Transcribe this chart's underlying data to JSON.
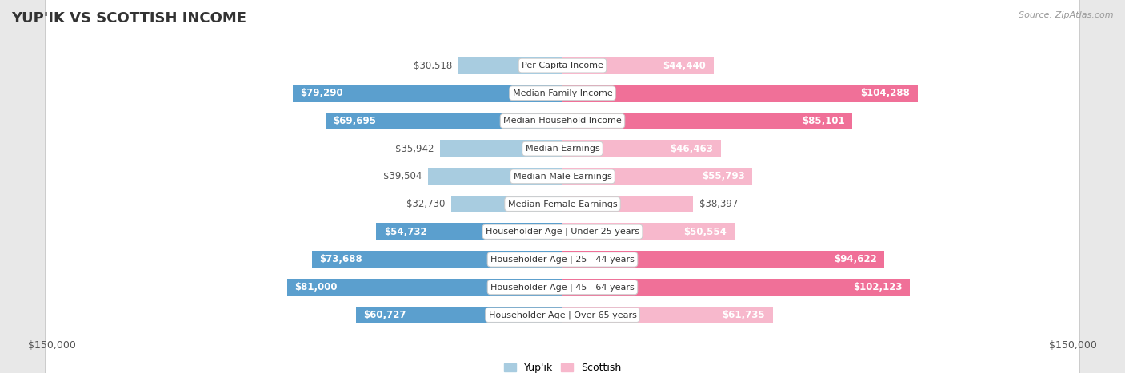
{
  "title": "YUP'IK VS SCOTTISH INCOME",
  "source": "Source: ZipAtlas.com",
  "categories": [
    "Per Capita Income",
    "Median Family Income",
    "Median Household Income",
    "Median Earnings",
    "Median Male Earnings",
    "Median Female Earnings",
    "Householder Age | Under 25 years",
    "Householder Age | 25 - 44 years",
    "Householder Age | 45 - 64 years",
    "Householder Age | Over 65 years"
  ],
  "yupik_values": [
    30518,
    79290,
    69695,
    35942,
    39504,
    32730,
    54732,
    73688,
    81000,
    60727
  ],
  "scottish_values": [
    44440,
    104288,
    85101,
    46463,
    55793,
    38397,
    50554,
    94622,
    102123,
    61735
  ],
  "yupik_labels": [
    "$30,518",
    "$79,290",
    "$69,695",
    "$35,942",
    "$39,504",
    "$32,730",
    "$54,732",
    "$73,688",
    "$81,000",
    "$60,727"
  ],
  "scottish_labels": [
    "$44,440",
    "$104,288",
    "$85,101",
    "$46,463",
    "$55,793",
    "$38,397",
    "$50,554",
    "$94,622",
    "$102,123",
    "$61,735"
  ],
  "yupik_color_light": "#a8cce0",
  "yupik_color_dark": "#5b9fce",
  "scottish_color_light": "#f7b8cc",
  "scottish_color_dark": "#f07098",
  "yupik_dark_threshold": 50000,
  "scottish_dark_threshold": 70000,
  "max_value": 150000,
  "background_color": "#e8e8e8",
  "row_bg_color": "#ffffff",
  "title_fontsize": 13,
  "label_fontsize": 8.5,
  "cat_fontsize": 8.0,
  "axis_label": "$150,000",
  "legend_yupik": "Yup'ik",
  "legend_scottish": "Scottish"
}
